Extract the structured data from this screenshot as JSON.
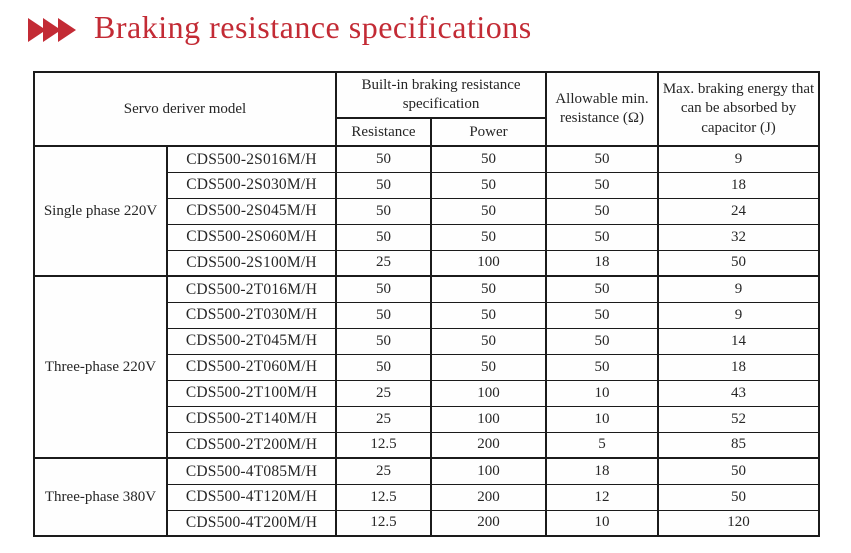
{
  "title": {
    "text": "Braking resistance specifications",
    "accent_color": "#c32b35"
  },
  "table": {
    "headers": {
      "servo_model": "Servo deriver model",
      "builtin_spec": "Built-in braking resistance specification",
      "resistance": "Resistance",
      "power": "Power",
      "allowable_min": "Allowable min. resistance (Ω)",
      "max_energy": "Max. braking energy that can be absorbed by capacitor (J)"
    },
    "groups": [
      {
        "label": "Single phase 220V",
        "rows": [
          {
            "model": "CDS500-2S016M/H",
            "resistance": "50",
            "power": "50",
            "allowable_min": "50",
            "max_energy": "9"
          },
          {
            "model": "CDS500-2S030M/H",
            "resistance": "50",
            "power": "50",
            "allowable_min": "50",
            "max_energy": "18"
          },
          {
            "model": "CDS500-2S045M/H",
            "resistance": "50",
            "power": "50",
            "allowable_min": "50",
            "max_energy": "24"
          },
          {
            "model": "CDS500-2S060M/H",
            "resistance": "50",
            "power": "50",
            "allowable_min": "50",
            "max_energy": "32"
          },
          {
            "model": "CDS500-2S100M/H",
            "resistance": "25",
            "power": "100",
            "allowable_min": "18",
            "max_energy": "50"
          }
        ]
      },
      {
        "label": "Three-phase 220V",
        "rows": [
          {
            "model": "CDS500-2T016M/H",
            "resistance": "50",
            "power": "50",
            "allowable_min": "50",
            "max_energy": "9"
          },
          {
            "model": "CDS500-2T030M/H",
            "resistance": "50",
            "power": "50",
            "allowable_min": "50",
            "max_energy": "9"
          },
          {
            "model": "CDS500-2T045M/H",
            "resistance": "50",
            "power": "50",
            "allowable_min": "50",
            "max_energy": "14"
          },
          {
            "model": "CDS500-2T060M/H",
            "resistance": "50",
            "power": "50",
            "allowable_min": "50",
            "max_energy": "18"
          },
          {
            "model": "CDS500-2T100M/H",
            "resistance": "25",
            "power": "100",
            "allowable_min": "10",
            "max_energy": "43"
          },
          {
            "model": "CDS500-2T140M/H",
            "resistance": "25",
            "power": "100",
            "allowable_min": "10",
            "max_energy": "52"
          },
          {
            "model": "CDS500-2T200M/H",
            "resistance": "12.5",
            "power": "200",
            "allowable_min": "5",
            "max_energy": "85"
          }
        ]
      },
      {
        "label": "Three-phase 380V",
        "rows": [
          {
            "model": "CDS500-4T085M/H",
            "resistance": "25",
            "power": "100",
            "allowable_min": "18",
            "max_energy": "50"
          },
          {
            "model": "CDS500-4T120M/H",
            "resistance": "12.5",
            "power": "200",
            "allowable_min": "12",
            "max_energy": "50"
          },
          {
            "model": "CDS500-4T200M/H",
            "resistance": "12.5",
            "power": "200",
            "allowable_min": "10",
            "max_energy": "120"
          }
        ]
      }
    ]
  }
}
